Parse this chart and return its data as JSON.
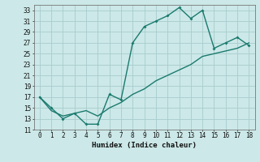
{
  "xlabel": "Humidex (Indice chaleur)",
  "x_main": [
    0,
    1,
    2,
    3,
    4,
    5,
    6,
    7,
    8,
    9,
    10,
    11,
    12,
    13,
    14,
    15,
    16,
    17,
    18
  ],
  "y_main": [
    17,
    15,
    13,
    14,
    12,
    12,
    17.5,
    16.5,
    27,
    30,
    31,
    32,
    33.5,
    31.5,
    33,
    26,
    27,
    28,
    26.5
  ],
  "x_line": [
    0,
    1,
    2,
    3,
    4,
    5,
    6,
    7,
    8,
    9,
    10,
    11,
    12,
    13,
    14,
    15,
    16,
    17,
    18
  ],
  "y_line": [
    17,
    14.5,
    13.5,
    14,
    14.5,
    13.5,
    15,
    16,
    17.5,
    18.5,
    20,
    21,
    22,
    23,
    24.5,
    25,
    25.5,
    26,
    27
  ],
  "color": "#1a7a6e",
  "bg_color": "#cce8e8",
  "grid_color": "#a8cccc",
  "ylim": [
    11,
    34
  ],
  "xlim": [
    -0.5,
    18.5
  ],
  "yticks": [
    11,
    13,
    15,
    17,
    19,
    21,
    23,
    25,
    27,
    29,
    31,
    33
  ],
  "xticks": [
    0,
    1,
    2,
    3,
    4,
    5,
    6,
    7,
    8,
    9,
    10,
    11,
    12,
    13,
    14,
    15,
    16,
    17,
    18
  ]
}
